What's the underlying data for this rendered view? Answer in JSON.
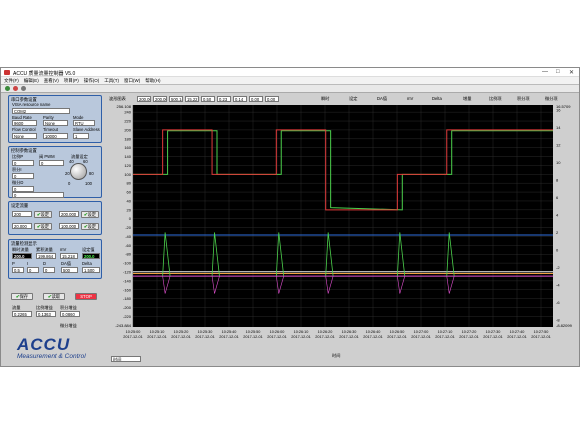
{
  "window": {
    "title": "ACCU 质量流量控制器 V5.0",
    "controls": [
      "—",
      "□",
      "✕"
    ]
  },
  "menu": [
    "文件(F)",
    "编辑(E)",
    "查看(V)",
    "项目(P)",
    "操作(O)",
    "工具(T)",
    "窗口(W)",
    "帮助(H)"
  ],
  "comm": {
    "label": "串口参数设置",
    "visa_label": "VISA resource name",
    "visa_value": "COM2",
    "baud_label": "Baud Rate",
    "baud_value": "9600",
    "parity_label": "Parity",
    "parity_value": "None",
    "mode_label": "Mode",
    "mode_value": "RTU",
    "flow_label": "Flow Control",
    "flow_value": "None",
    "timeout_label": "Timeout",
    "timeout_value": "10000",
    "slave_label": "Slave Address",
    "slave_value": "1"
  },
  "control": {
    "label": "控制参数设置",
    "c1": "比例P",
    "c2": "积分I",
    "c3": "微分D",
    "c4": "阀 PWM",
    "c5": "流量设定",
    "v1": "0",
    "v2": "0",
    "v3": "0",
    "v4": "0",
    "v5": "0",
    "knob_ticks": [
      "0",
      "20",
      "40",
      "60",
      "80",
      "100"
    ]
  },
  "setpoints": {
    "label": "设定流量",
    "rows": [
      {
        "value": "200",
        "button": "设定"
      },
      {
        "value": "200.000",
        "button": "设定"
      },
      {
        "value": "20.000",
        "button": "设定"
      },
      {
        "value": "100.000",
        "button": "设定"
      }
    ]
  },
  "display": {
    "label": "流量检测显示",
    "h1": "瞬时流量",
    "h2": "累积流量",
    "h3": "mV",
    "h4": "设定值",
    "v1": "200.0",
    "v2": "199.864",
    "v3": "15.218",
    "v4": "200.0",
    "h5": "P",
    "h6": "I",
    "h7": "D",
    "h8": "DA值",
    "h9": "Delta",
    "v5": "0.5",
    "v6": "0",
    "v7": "0",
    "v8": "500",
    "v9": "1.500"
  },
  "buttons": {
    "b1": "保存",
    "b2": "读取",
    "b3": "STOP"
  },
  "bottom": {
    "h1": "流量",
    "h2": "比例增益",
    "h3": "积分增益",
    "h4": "微分增益",
    "v1": "0.2265",
    "v2": "0.1363",
    "v3": "0.0860"
  },
  "logo": {
    "brand": "ACCU",
    "sub": "Measurement & Control"
  },
  "chart_top": {
    "label": "波形图表",
    "f1": "200.00",
    "f2": "200.00",
    "f3": "500.14",
    "f4": "15.22",
    "f5": "0.50",
    "f6": "0.23",
    "f7": "0.14",
    "f8": "0.00",
    "f9": "0.00",
    "l1": "瞬时",
    "l2": "设定",
    "l3": "DA值",
    "l4": "mV",
    "l5": "Delta",
    "l6": "增量",
    "l7": "比例项",
    "l8": "积分项",
    "l9": "微分项"
  },
  "chart_bottom": {
    "status": "时间",
    "xlabel": "时间"
  },
  "colors": {
    "bg": "#000000",
    "grid": "#2a2a2a",
    "setpoint": "#e23b3b",
    "flow": "#4cd04c",
    "da": "#2f6fe0",
    "mv": "#e04fd0",
    "delta": "#f0f0f0",
    "pterm": "#f0a040"
  },
  "chart_data": {
    "type": "line",
    "ylim": [
      -243.884,
      256.108
    ],
    "y2lim": [
      -8.82099,
      16.5709
    ],
    "yticks": [
      240,
      220,
      200,
      180,
      160,
      140,
      120,
      100,
      80,
      60,
      40,
      20,
      0,
      -20,
      -40,
      -60,
      -80,
      -100,
      -120,
      -140,
      -160,
      -180,
      -200,
      -220
    ],
    "y_extremes": [
      "256.108",
      "-243.884"
    ],
    "y2ticks": [
      16,
      14,
      12,
      10,
      8,
      6,
      4,
      2,
      0,
      -2,
      -4,
      -6,
      -8
    ],
    "y2_extremes": [
      "16.5709",
      "-8.82099"
    ],
    "xticks": [
      [
        "10:25:00",
        "2017-12-01"
      ],
      [
        "10:25:10",
        "2017-12-01"
      ],
      [
        "10:25:20",
        "2017-12-01"
      ],
      [
        "10:25:30",
        "2017-12-01"
      ],
      [
        "10:25:40",
        "2017-12-01"
      ],
      [
        "10:25:50",
        "2017-12-01"
      ],
      [
        "10:26:00",
        "2017-12-01"
      ],
      [
        "10:26:10",
        "2017-12-01"
      ],
      [
        "10:26:20",
        "2017-12-01"
      ],
      [
        "10:26:30",
        "2017-12-01"
      ],
      [
        "10:26:40",
        "2017-12-01"
      ],
      [
        "10:26:50",
        "2017-12-01"
      ],
      [
        "10:27:00",
        "2017-12-01"
      ],
      [
        "10:27:10",
        "2017-12-01"
      ],
      [
        "10:27:20",
        "2017-12-01"
      ],
      [
        "10:27:30",
        "2017-12-01"
      ],
      [
        "10:27:40",
        "2017-12-01"
      ],
      [
        "10:27:50",
        "2017-12-01"
      ]
    ],
    "xlim": [
      0,
      170
    ],
    "setpoint": [
      [
        0,
        100
      ],
      [
        12,
        100
      ],
      [
        12,
        200
      ],
      [
        32,
        200
      ],
      [
        32,
        100
      ],
      [
        58,
        100
      ],
      [
        58,
        200
      ],
      [
        78,
        200
      ],
      [
        78,
        20
      ],
      [
        107,
        20
      ],
      [
        107,
        100
      ],
      [
        127,
        100
      ],
      [
        127,
        200
      ],
      [
        170,
        200
      ]
    ],
    "flow": [
      [
        0,
        100
      ],
      [
        14,
        100
      ],
      [
        14,
        198
      ],
      [
        34,
        198
      ],
      [
        34,
        100
      ],
      [
        60,
        100
      ],
      [
        60,
        198
      ],
      [
        80,
        198
      ],
      [
        80,
        25
      ],
      [
        109,
        20
      ],
      [
        109,
        100
      ],
      [
        129,
        100
      ],
      [
        129,
        198
      ],
      [
        170,
        198
      ]
    ],
    "da": [
      [
        0,
        1.7
      ],
      [
        170,
        1.7
      ]
    ],
    "mv": [
      [
        0,
        -3
      ],
      [
        170,
        -3
      ]
    ],
    "delta": [
      [
        0,
        -2.5
      ],
      [
        170,
        -2.5
      ]
    ],
    "pterm": [
      [
        0,
        -2.7
      ],
      [
        170,
        -2.7
      ]
    ],
    "spikes": [
      12,
      32,
      58,
      78,
      107,
      127
    ]
  }
}
